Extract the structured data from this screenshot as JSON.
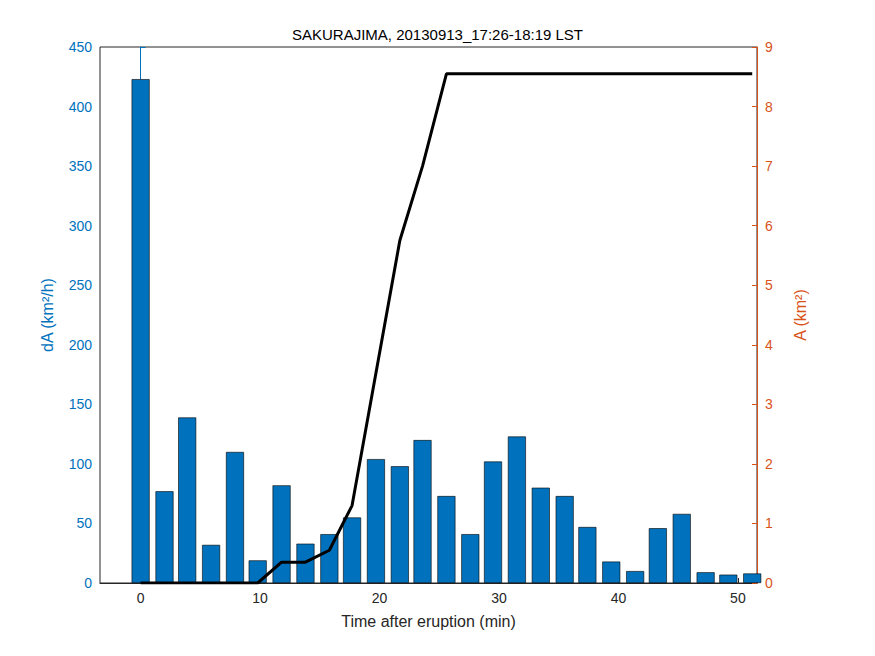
{
  "chart_data": {
    "type": "bar",
    "title": "SAKURAJIMA, 20130913_17:26-18:19 LST",
    "x_label": "Time after eruption (min)",
    "y_label": "dA (km²/h)",
    "y2_label": "A (km²)",
    "xlim": [
      -3.4,
      51.6
    ],
    "xticks": [
      0,
      10,
      20,
      30,
      40,
      50
    ],
    "ylim": [
      0,
      450
    ],
    "yticks": [
      0,
      50,
      100,
      150,
      200,
      250,
      300,
      350,
      400,
      450
    ],
    "y2lim": [
      0,
      9
    ],
    "y2ticks": [
      0,
      1,
      2,
      3,
      4,
      5,
      6,
      7,
      8,
      9
    ],
    "grid": false,
    "series": [
      {
        "type": "bar",
        "axis": "y",
        "color": "#0072BD",
        "x": [
          0,
          2.0,
          3.9,
          5.9,
          7.9,
          9.8,
          11.8,
          13.8,
          15.8,
          17.7,
          19.7,
          21.7,
          23.6,
          25.6,
          27.6,
          29.5,
          31.5,
          33.5,
          35.5,
          37.4,
          39.4,
          41.4,
          43.3,
          45.3,
          47.3,
          49.2,
          51.2
        ],
        "values": [
          423,
          77,
          139,
          32,
          110,
          19,
          82,
          33,
          41,
          55,
          104,
          98,
          120,
          73,
          41,
          102,
          123,
          80,
          73,
          47,
          18,
          10,
          46,
          58,
          9,
          7,
          8
        ]
      },
      {
        "type": "line",
        "axis": "y2",
        "color": "#000000",
        "x": [
          0,
          9.8,
          11.8,
          13.8,
          15.8,
          17.7,
          21.7,
          23.6,
          25.6,
          51.2
        ],
        "values": [
          0,
          0,
          0.35,
          0.35,
          0.55,
          1.3,
          5.75,
          7.0,
          8.55,
          8.55
        ]
      }
    ]
  }
}
